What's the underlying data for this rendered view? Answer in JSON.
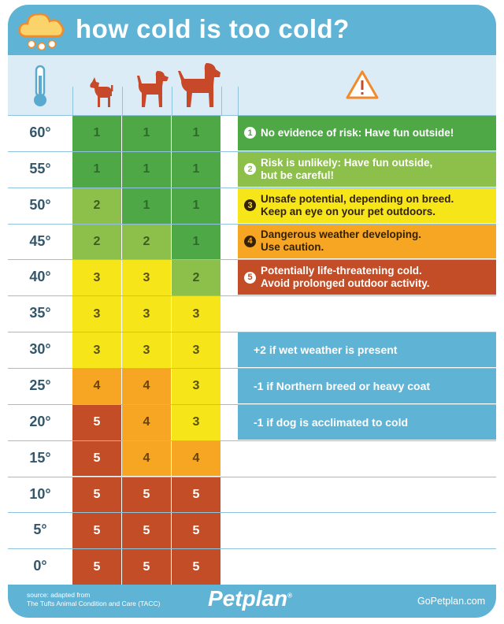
{
  "header": {
    "title": "how cold is too cold?"
  },
  "colors": {
    "level1": "#4fa846",
    "level2": "#8cc04a",
    "level3": "#f6e518",
    "level4": "#f6a623",
    "level5": "#c24d27",
    "frame": "#5fb4d6",
    "header_row": "#dcecf6",
    "dog": "#c8492a"
  },
  "columns": {
    "thermometer_icon": "thermometer-icon",
    "dogs": [
      "small-dog-icon",
      "medium-dog-icon",
      "large-dog-icon"
    ],
    "warning_icon": "warning-icon"
  },
  "rows": [
    {
      "temp": "60°",
      "levels": [
        "1",
        "1",
        "1"
      ]
    },
    {
      "temp": "55°",
      "levels": [
        "1",
        "1",
        "1"
      ]
    },
    {
      "temp": "50°",
      "levels": [
        "2",
        "1",
        "1"
      ]
    },
    {
      "temp": "45°",
      "levels": [
        "2",
        "2",
        "1"
      ]
    },
    {
      "temp": "40°",
      "levels": [
        "3",
        "3",
        "2"
      ]
    },
    {
      "temp": "35°",
      "levels": [
        "3",
        "3",
        "3"
      ]
    },
    {
      "temp": "30°",
      "levels": [
        "3",
        "3",
        "3"
      ]
    },
    {
      "temp": "25°",
      "levels": [
        "4",
        "4",
        "3"
      ]
    },
    {
      "temp": "20°",
      "levels": [
        "5",
        "4",
        "3"
      ]
    },
    {
      "temp": "15°",
      "levels": [
        "5",
        "4",
        "4"
      ]
    },
    {
      "temp": "10°",
      "levels": [
        "5",
        "5",
        "5"
      ]
    },
    {
      "temp": "5°",
      "levels": [
        "5",
        "5",
        "5"
      ]
    },
    {
      "temp": "0°",
      "levels": [
        "5",
        "5",
        "5"
      ]
    }
  ],
  "legend": [
    {
      "num": "1",
      "line1": "No evidence of risk: Have fun outside!",
      "line2": ""
    },
    {
      "num": "2",
      "line1": "Risk is unlikely: Have fun outside,",
      "line2": "but be careful!"
    },
    {
      "num": "3",
      "line1": "Unsafe potential, depending on breed.",
      "line2": "Keep an eye on your pet outdoors."
    },
    {
      "num": "4",
      "line1": "Dangerous weather developing.",
      "line2": "Use caution."
    },
    {
      "num": "5",
      "line1": "Potentially life-threatening cold.",
      "line2": "Avoid prolonged outdoor activity."
    }
  ],
  "modifiers": [
    "+2 if wet weather is present",
    "-1 if Northern breed or heavy coat",
    "-1 if dog is acclimated to cold"
  ],
  "footer": {
    "source_line1": "source: adapted from",
    "source_line2": "The Tufts Animal Condition and Care (TACC)",
    "brand": "Petplan",
    "trademark": "®",
    "site": "GoPetplan.com"
  }
}
